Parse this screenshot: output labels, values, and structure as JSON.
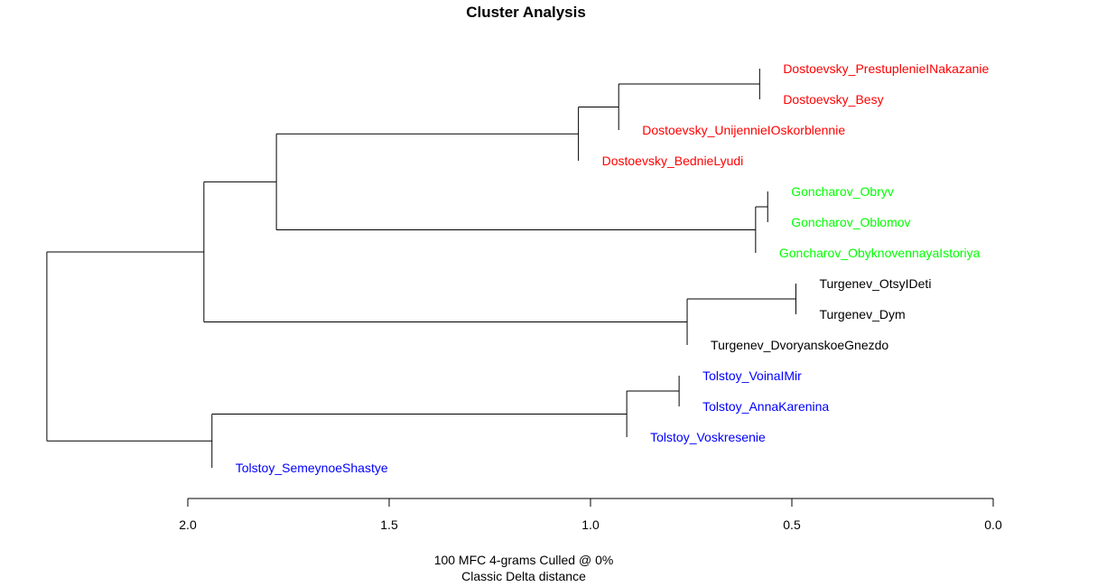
{
  "chart_data": {
    "type": "dendrogram",
    "title": "Cluster Analysis",
    "xlabel_lines": [
      "100 MFC 4-grams Culled @ 0%",
      "Classic Delta distance"
    ],
    "xlim": [
      2.0,
      0.0
    ],
    "ticks": [
      {
        "value": 2.0,
        "label": "2.0"
      },
      {
        "value": 1.5,
        "label": "1.5"
      },
      {
        "value": 1.0,
        "label": "1.0"
      },
      {
        "value": 0.5,
        "label": "0.5"
      },
      {
        "value": 0.0,
        "label": "0.0"
      }
    ],
    "colors": {
      "Dostoevsky": "#ff0000",
      "Goncharov": "#00ff00",
      "Turgenev": "#000000",
      "Tolstoy": "#0000ff"
    },
    "leaves": [
      {
        "label": "Dostoevsky_PrestuplenieINakazanie",
        "group": "Dostoevsky"
      },
      {
        "label": "Dostoevsky_Besy",
        "group": "Dostoevsky"
      },
      {
        "label": "Dostoevsky_UnijennieIOskorblennie",
        "group": "Dostoevsky"
      },
      {
        "label": "Dostoevsky_BednieLyudi",
        "group": "Dostoevsky"
      },
      {
        "label": "Goncharov_Obryv",
        "group": "Goncharov"
      },
      {
        "label": "Goncharov_Oblomov",
        "group": "Goncharov"
      },
      {
        "label": "Goncharov_ObyknovennayaIstoriya",
        "group": "Goncharov"
      },
      {
        "label": "Turgenev_OtsyIDeti",
        "group": "Turgenev"
      },
      {
        "label": "Turgenev_Dym",
        "group": "Turgenev"
      },
      {
        "label": "Turgenev_DvoryanskoeGnezdo",
        "group": "Turgenev"
      },
      {
        "label": "Tolstoy_VoinaIMir",
        "group": "Tolstoy"
      },
      {
        "label": "Tolstoy_AnnaKarenina",
        "group": "Tolstoy"
      },
      {
        "label": "Tolstoy_Voskresenie",
        "group": "Tolstoy"
      },
      {
        "label": "Tolstoy_SemeynoeShastye",
        "group": "Tolstoy"
      }
    ],
    "tree": {
      "height": 2.35,
      "children": [
        {
          "height": 1.96,
          "children": [
            {
              "height": 1.78,
              "children": [
                {
                  "height": 1.03,
                  "children": [
                    {
                      "height": 0.93,
                      "children": [
                        {
                          "height": 0.58,
                          "children": [
                            {
                              "leaf": 0
                            },
                            {
                              "leaf": 1
                            }
                          ]
                        },
                        {
                          "leaf": 2
                        }
                      ]
                    },
                    {
                      "leaf": 3
                    }
                  ]
                },
                {
                  "height": 0.59,
                  "children": [
                    {
                      "height": 0.56,
                      "children": [
                        {
                          "leaf": 4
                        },
                        {
                          "leaf": 5
                        }
                      ]
                    },
                    {
                      "leaf": 6
                    }
                  ]
                }
              ]
            },
            {
              "height": 0.76,
              "children": [
                {
                  "height": 0.49,
                  "children": [
                    {
                      "leaf": 7
                    },
                    {
                      "leaf": 8
                    }
                  ]
                },
                {
                  "leaf": 9
                }
              ]
            }
          ]
        },
        {
          "height": 1.94,
          "children": [
            {
              "height": 0.91,
              "children": [
                {
                  "height": 0.78,
                  "children": [
                    {
                      "leaf": 10
                    },
                    {
                      "leaf": 11
                    }
                  ]
                },
                {
                  "leaf": 12
                }
              ]
            },
            {
              "leaf": 13
            }
          ]
        }
      ]
    }
  }
}
